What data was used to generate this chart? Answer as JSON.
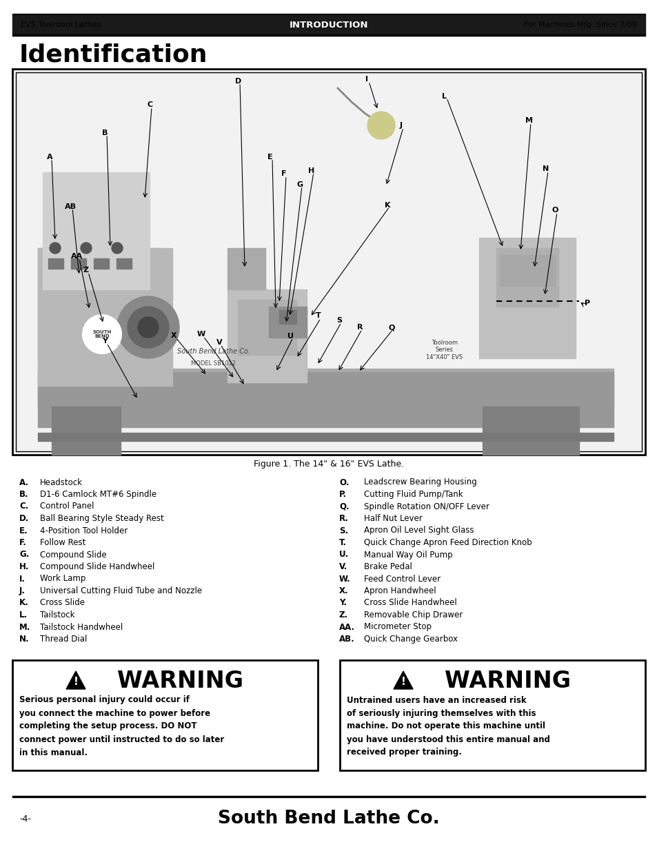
{
  "header_left": "EVS Toolroom Lathes",
  "header_center": "INTRODUCTION",
  "header_right": "For Machines Mfg. Since 7/09",
  "page_title": "Identification",
  "figure_caption": "Figure 1. The 14\" & 16\" EVS Lathe.",
  "parts_left": [
    [
      "A.",
      "Headstock"
    ],
    [
      "B.",
      "D1-6 Camlock MT#6 Spindle"
    ],
    [
      "C.",
      "Control Panel"
    ],
    [
      "D.",
      "Ball Bearing Style Steady Rest"
    ],
    [
      "E.",
      "4-Position Tool Holder"
    ],
    [
      "F.",
      "Follow Rest"
    ],
    [
      "G.",
      "Compound Slide"
    ],
    [
      "H.",
      "Compound Slide Handwheel"
    ],
    [
      "I.",
      "Work Lamp"
    ],
    [
      "J.",
      "Universal Cutting Fluid Tube and Nozzle"
    ],
    [
      "K.",
      "Cross Slide"
    ],
    [
      "L.",
      "Tailstock"
    ],
    [
      "M.",
      "Tailstock Handwheel"
    ],
    [
      "N.",
      "Thread Dial"
    ]
  ],
  "parts_right": [
    [
      "O.",
      "Leadscrew Bearing Housing"
    ],
    [
      "P.",
      "Cutting Fluid Pump/Tank"
    ],
    [
      "Q.",
      "Spindle Rotation ON/OFF Lever"
    ],
    [
      "R.",
      "Half Nut Lever"
    ],
    [
      "S.",
      "Apron Oil Level Sight Glass"
    ],
    [
      "T.",
      "Quick Change Apron Feed Direction Knob"
    ],
    [
      "U.",
      "Manual Way Oil Pump"
    ],
    [
      "V.",
      "Brake Pedal"
    ],
    [
      "W.",
      "Feed Control Lever"
    ],
    [
      "X.",
      "Apron Handwheel"
    ],
    [
      "Y.",
      "Cross Slide Handwheel"
    ],
    [
      "Z.",
      "Removable Chip Drawer"
    ],
    [
      "AA.",
      "Micrometer Stop"
    ],
    [
      "AB.",
      "Quick Change Gearbox"
    ]
  ],
  "warning1_title": "WARNING",
  "warning1_body": "Serious personal injury could occur if\nyou connect the machine to power before\ncompleting the setup process. DO NOT\nconnect power until instructed to do so later\nin this manual.",
  "warning2_title": "WARNING",
  "warning2_body": "Untrained users have an increased risk\nof seriously injuring themselves with this\nmachine. Do not operate this machine until\nyou have understood this entire manual and\nreceived proper training.",
  "footer_left": "-4-",
  "footer_center": "South Bend Lathe Co.",
  "bg_color": "#ffffff",
  "header_bg": "#1a1a1a",
  "header_fg": "#ffffff",
  "border_color": "#000000"
}
